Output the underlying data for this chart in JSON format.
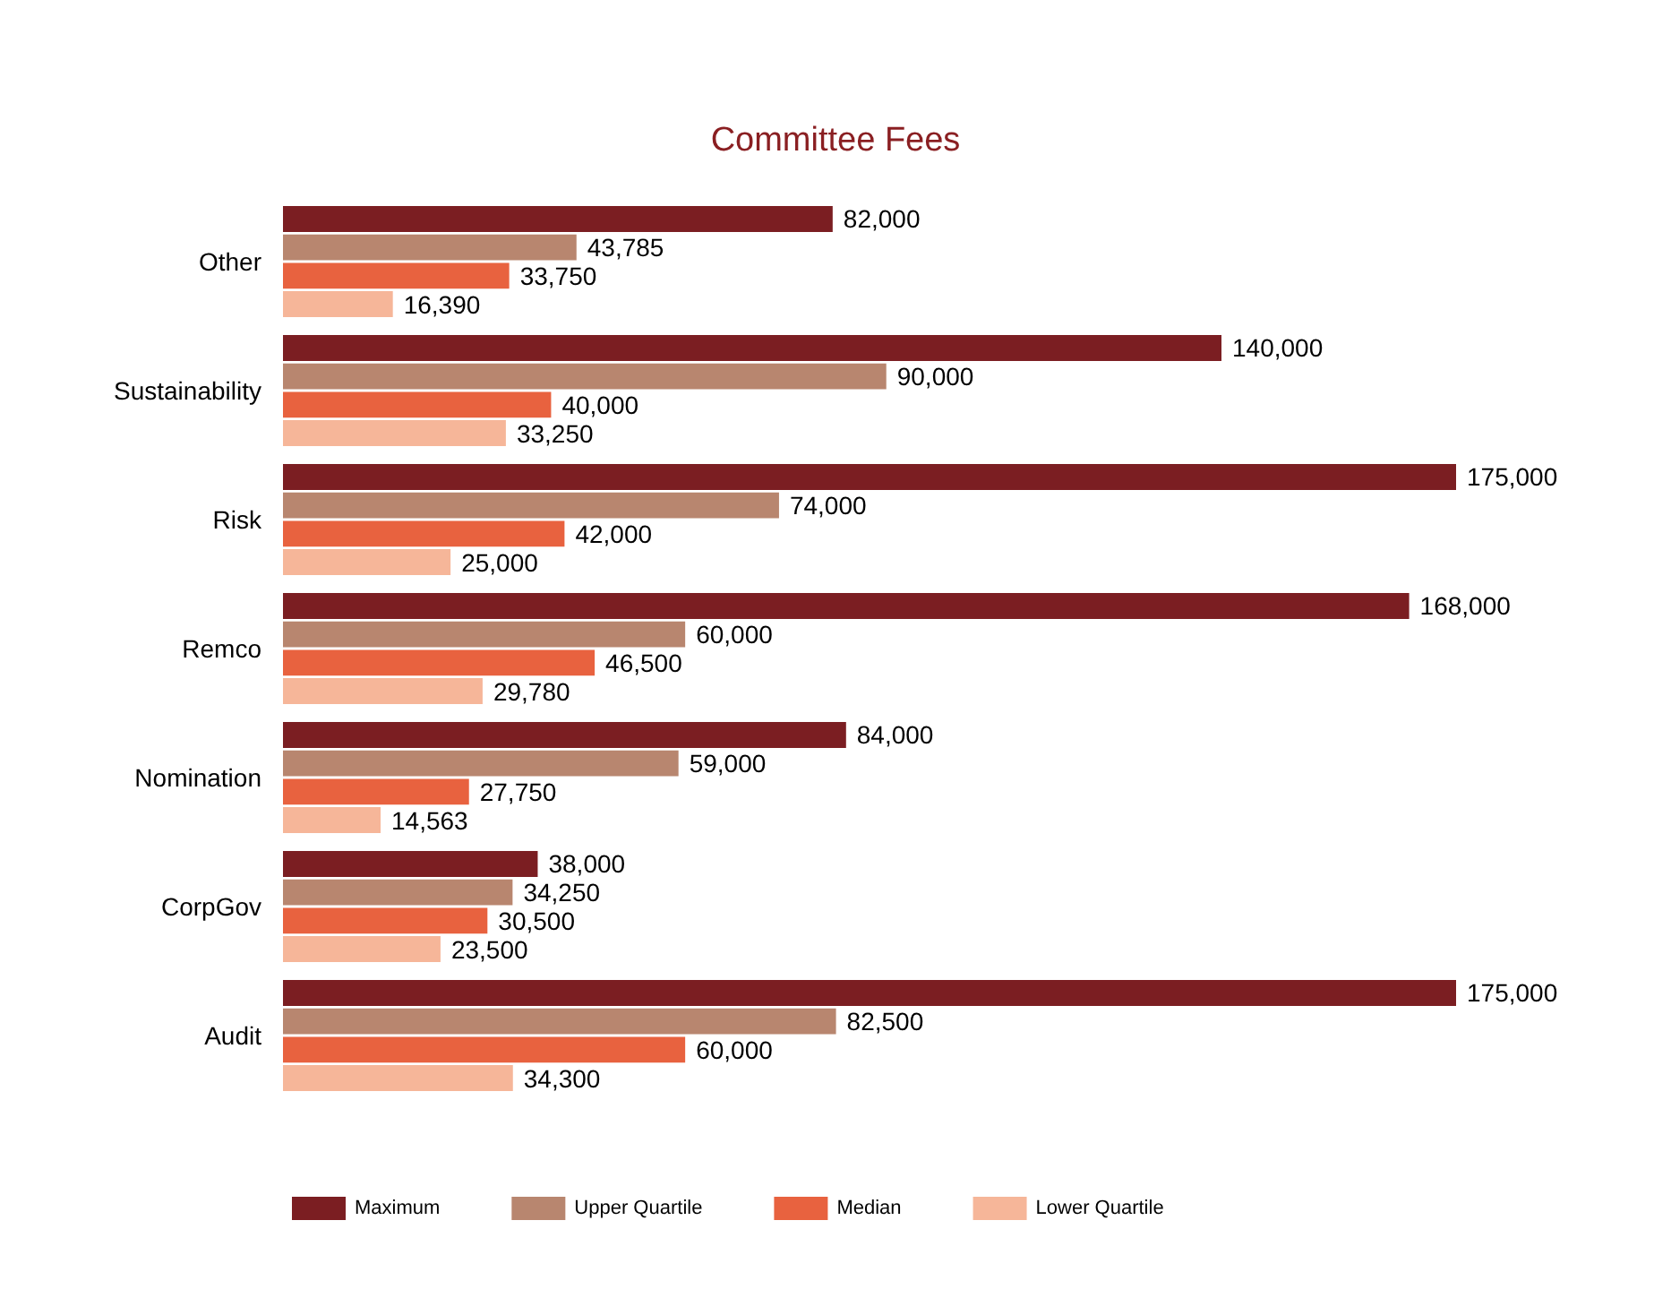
{
  "chart_data": {
    "type": "bar",
    "orientation": "horizontal",
    "title": "Committee Fees",
    "categories": [
      "Other",
      "Sustainability",
      "Risk",
      "Remco",
      "Nomination",
      "CorpGov",
      "Audit"
    ],
    "series": [
      {
        "name": "Maximum",
        "color": "#7b1e22",
        "values": [
          82000,
          140000,
          175000,
          168000,
          84000,
          38000,
          175000
        ],
        "value_labels": [
          "82,000",
          "140,000",
          "175,000",
          "168,000",
          "84,000",
          "38,000",
          "175,000"
        ]
      },
      {
        "name": "Upper Quartile",
        "color": "#b8866f",
        "values": [
          43785,
          90000,
          74000,
          60000,
          59000,
          34250,
          82500
        ],
        "value_labels": [
          "43,785",
          "90,000",
          "74,000",
          "60,000",
          "59,000",
          "34,250",
          "82,500"
        ]
      },
      {
        "name": "Median",
        "color": "#e8623f",
        "values": [
          33750,
          40000,
          42000,
          46500,
          27750,
          30500,
          60000
        ],
        "value_labels": [
          "33,750",
          "40,000",
          "42,000",
          "46,500",
          "27,750",
          "30,500",
          "60,000"
        ]
      },
      {
        "name": "Lower Quartile",
        "color": "#f6b699",
        "values": [
          16390,
          33250,
          25000,
          29780,
          14563,
          23500,
          34300
        ],
        "value_labels": [
          "16,390",
          "33,250",
          "25,000",
          "29,780",
          "14,563",
          "23,500",
          "34,300"
        ]
      }
    ],
    "legend": "bottom",
    "tick_labels": "y"
  }
}
